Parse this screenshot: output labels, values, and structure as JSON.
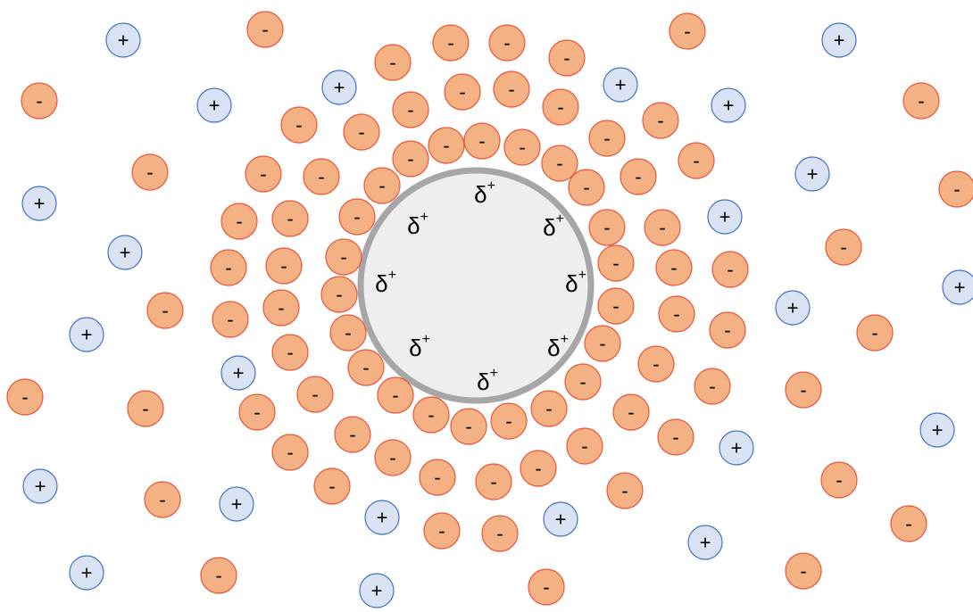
{
  "labels": {
    "anion": "-",
    "cation": "+",
    "partial_charge": {
      "symbol": "δ",
      "sign": "+"
    }
  }
}
